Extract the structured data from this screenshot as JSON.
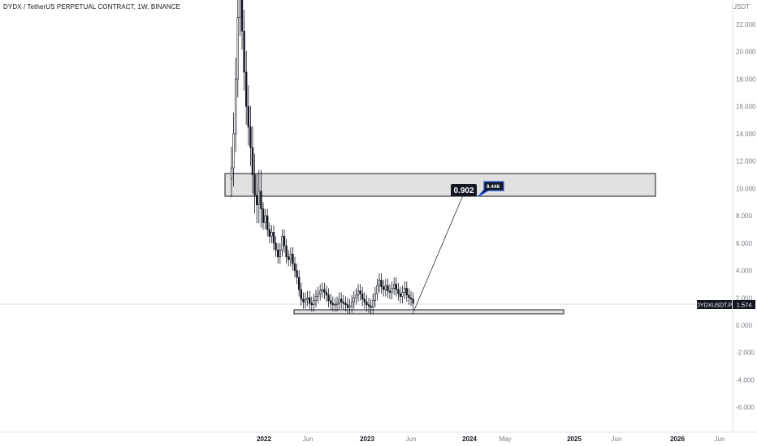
{
  "header": {
    "title": "DYDX / TetherUS PERPETUAL CONTRACT, 1W, BINANCE"
  },
  "price_axis": {
    "unit": "USDT",
    "symbol_label": "DYDXUSDT.P",
    "last_price": "1.574"
  },
  "annotations": {
    "ratio_label": "0.902",
    "target_label": "9.448"
  },
  "colors": {
    "candle": "#131722",
    "zone_fill": "#e0e0e0",
    "zone_border": "#131722",
    "callout_blue": "#1e53e5"
  },
  "chart_data": {
    "type": "candlestick",
    "yaxis": {
      "ticks": [
        "22.000",
        "20.000",
        "18.000",
        "16.000",
        "14.000",
        "12.000",
        "10.000",
        "8.000",
        "6.000",
        "4.000",
        "2.000",
        "0.000",
        "-2.000",
        "-4.000",
        "-6.000"
      ],
      "ylim": [
        -7,
        23.5
      ]
    },
    "xaxis": {
      "ticks": [
        {
          "label": "2022",
          "bold": true
        },
        {
          "label": "Jun",
          "bold": false
        },
        {
          "label": "2023",
          "bold": true
        },
        {
          "label": "Jun",
          "bold": false
        },
        {
          "label": "2024",
          "bold": true
        },
        {
          "label": "May",
          "bold": false
        },
        {
          "label": "2025",
          "bold": true
        },
        {
          "label": "Jun",
          "bold": false
        },
        {
          "label": "2026",
          "bold": true
        },
        {
          "label": "Jun",
          "bold": false
        }
      ]
    },
    "candles_close_approx": [
      11.5,
      14.0,
      18.0,
      22.5,
      26.5,
      21.5,
      18.5,
      16.0,
      14.5,
      13.0,
      11.0,
      9.5,
      8.8,
      9.8,
      8.5,
      7.5,
      8.0,
      7.0,
      6.5,
      6.8,
      6.0,
      5.5,
      5.0,
      5.5,
      6.5,
      5.8,
      5.0,
      4.8,
      5.2,
      4.5,
      4.0,
      3.5,
      2.6,
      1.9,
      1.7,
      1.9,
      2.0,
      1.6,
      1.5,
      1.8,
      2.1,
      2.3,
      2.5,
      2.6,
      2.4,
      2.2,
      1.8,
      1.6,
      1.5,
      1.5,
      1.6,
      1.9,
      1.7,
      1.6,
      1.5,
      1.3,
      1.4,
      1.7,
      2.0,
      2.2,
      2.5,
      2.3,
      1.9,
      1.7,
      1.5,
      1.4,
      1.3,
      1.8,
      2.3,
      2.9,
      3.3,
      2.8,
      2.6,
      2.9,
      2.5,
      2.4,
      2.7,
      3.0,
      2.6,
      2.3,
      2.1,
      2.4,
      2.7,
      2.2,
      2.0,
      1.9,
      1.6
    ],
    "zones": [
      {
        "name": "resistance",
        "from": 9.4,
        "to": 11.1
      },
      {
        "name": "support",
        "from": 0.9,
        "to": 1.25
      }
    ],
    "last_price": 1.574
  }
}
